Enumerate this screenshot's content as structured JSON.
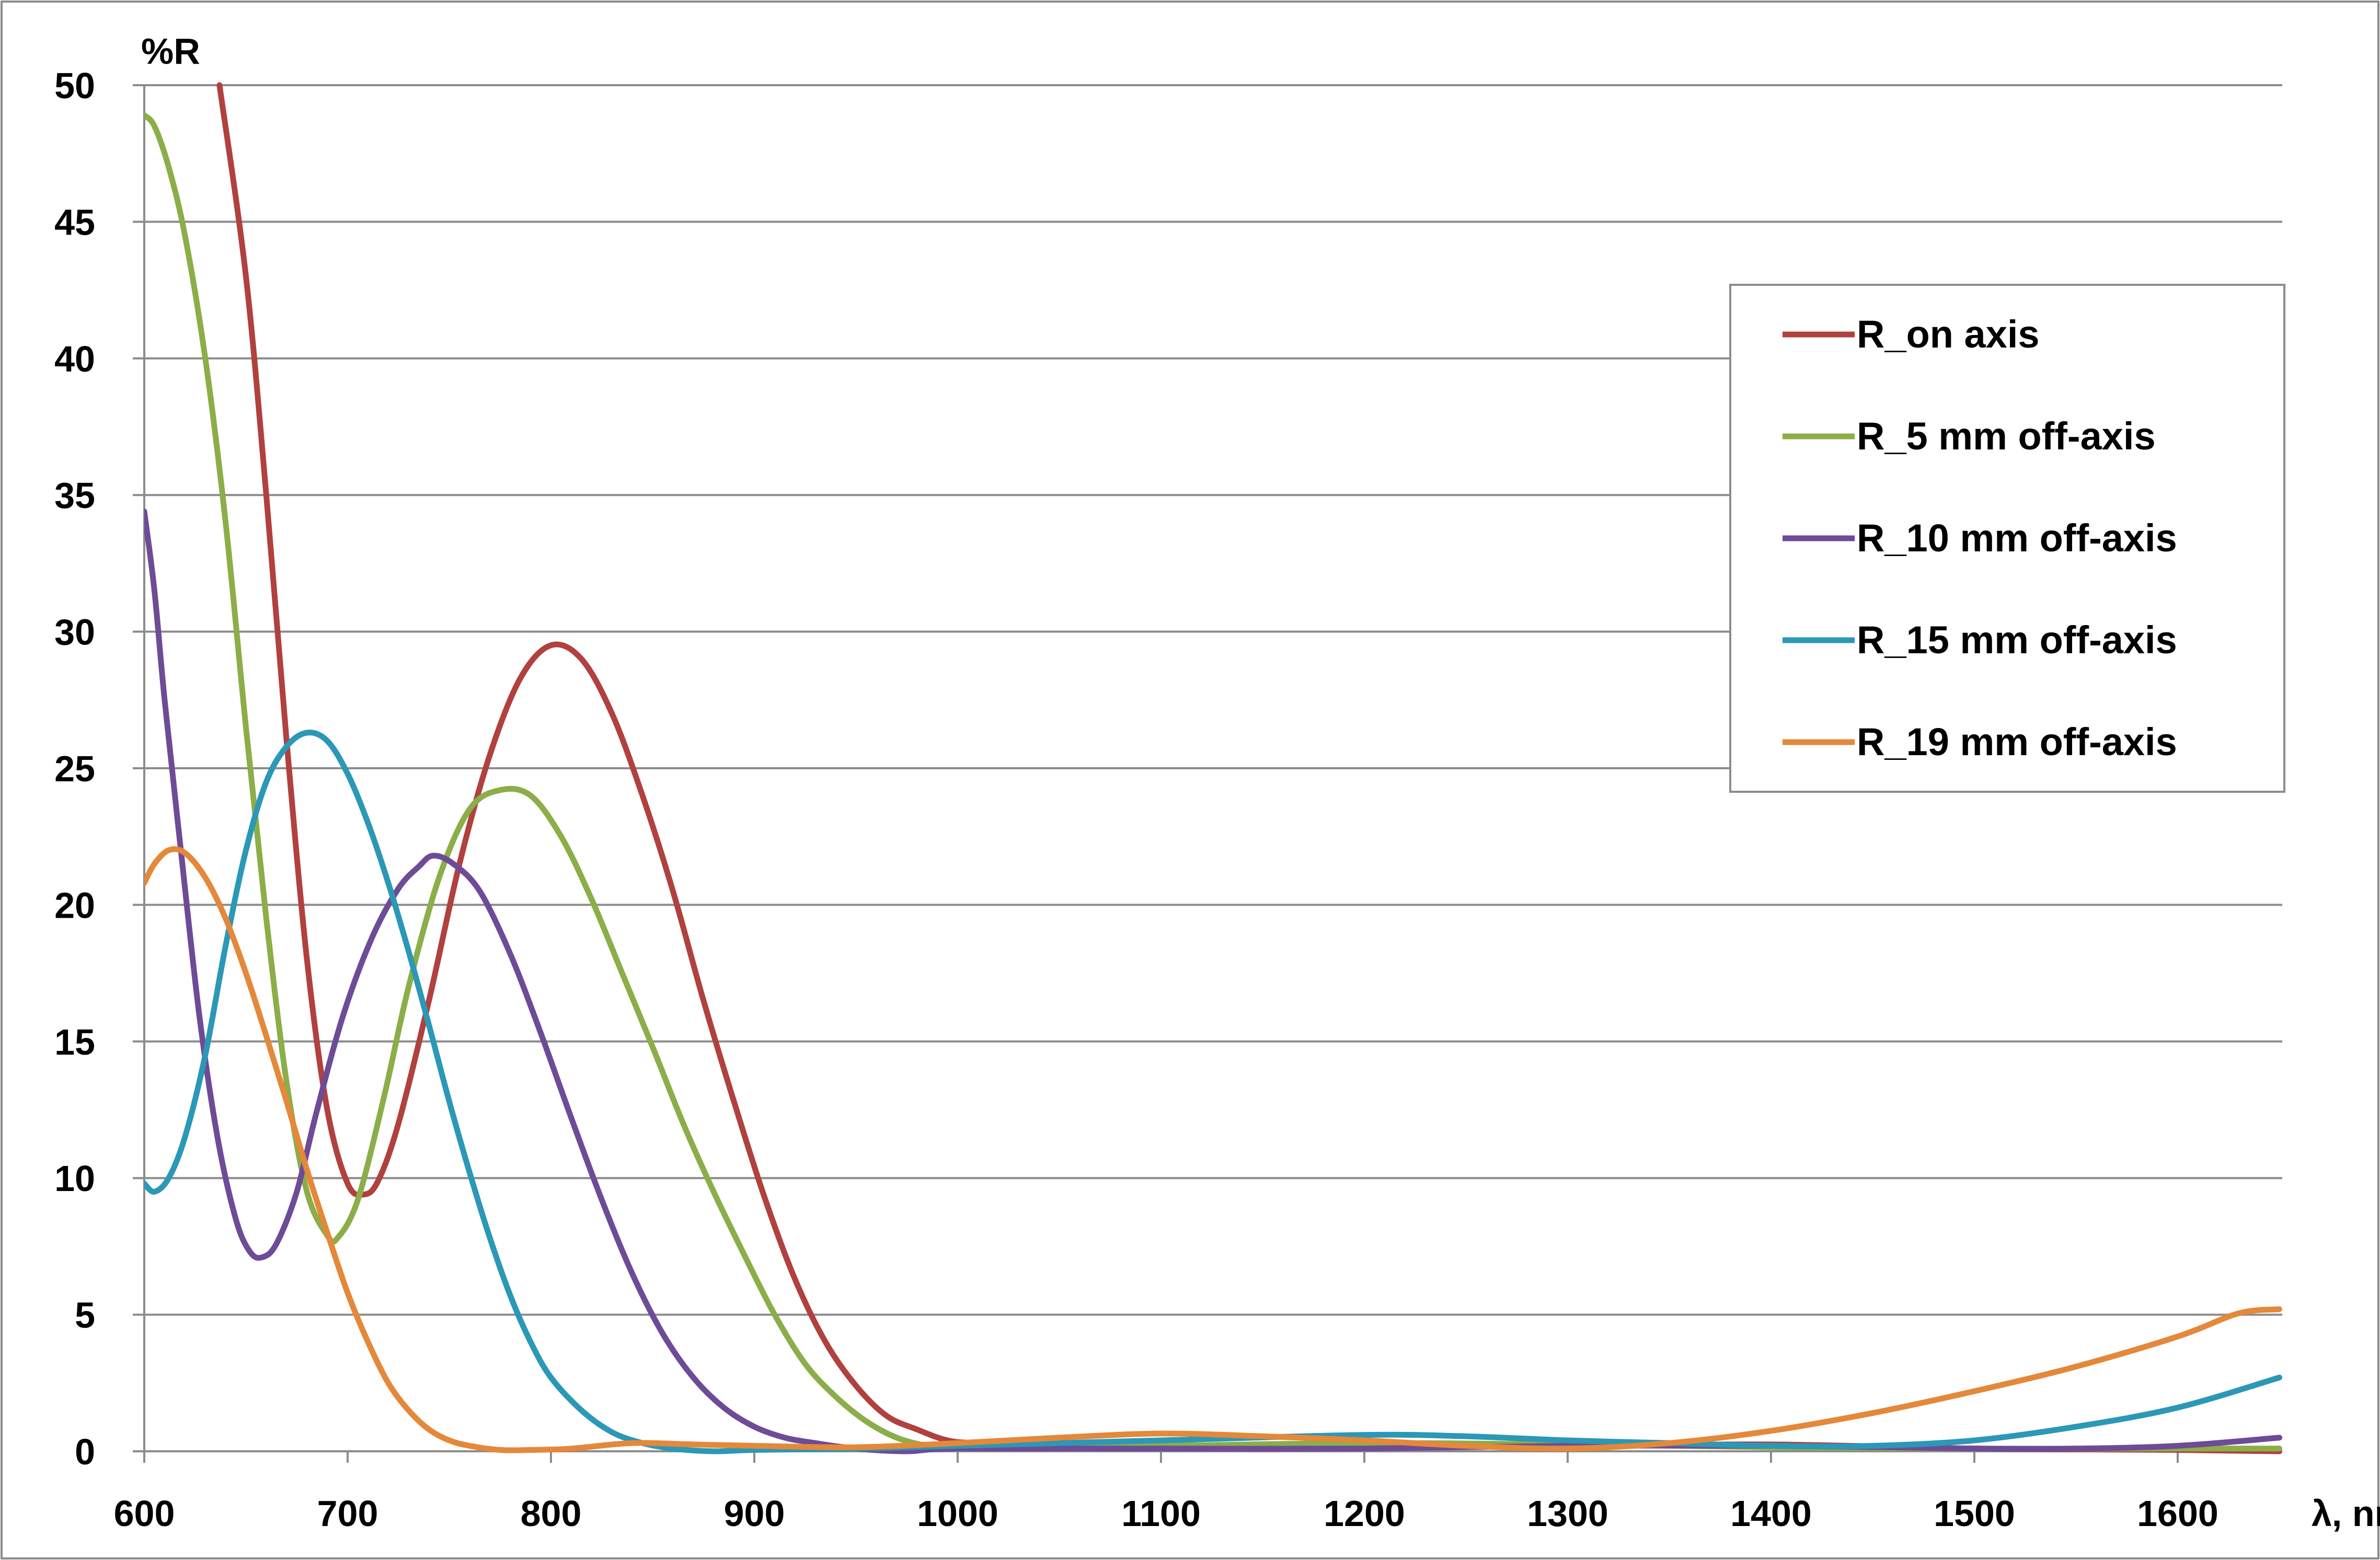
{
  "chart_data": {
    "type": "line",
    "title": "",
    "ylabel": "%R",
    "xlabel": "λ, nm",
    "xlim": [
      600,
      1650
    ],
    "ylim": [
      0,
      50
    ],
    "x_ticks": [
      600,
      700,
      800,
      900,
      1000,
      1100,
      1200,
      1300,
      1400,
      1500,
      1600
    ],
    "y_ticks": [
      0,
      5,
      10,
      15,
      20,
      25,
      30,
      35,
      40,
      45,
      50
    ],
    "grid": "horizontal",
    "legend_position": "right",
    "series": [
      {
        "name": "R_on axis",
        "color": "#B0413E",
        "points": [
          [
            637,
            50
          ],
          [
            650,
            43
          ],
          [
            660,
            35
          ],
          [
            670,
            26
          ],
          [
            680,
            18
          ],
          [
            690,
            12.5
          ],
          [
            700,
            9.8
          ],
          [
            708,
            9.4
          ],
          [
            715,
            9.9
          ],
          [
            725,
            12
          ],
          [
            740,
            16.5
          ],
          [
            755,
            21.5
          ],
          [
            770,
            25.5
          ],
          [
            785,
            28.3
          ],
          [
            800,
            29.5
          ],
          [
            815,
            29
          ],
          [
            830,
            27
          ],
          [
            845,
            24
          ],
          [
            860,
            20.5
          ],
          [
            875,
            16.5
          ],
          [
            890,
            12.8
          ],
          [
            905,
            9.3
          ],
          [
            920,
            6.3
          ],
          [
            935,
            4
          ],
          [
            950,
            2.4
          ],
          [
            965,
            1.3
          ],
          [
            980,
            0.8
          ],
          [
            995,
            0.4
          ],
          [
            1010,
            0.3
          ],
          [
            1050,
            0.2
          ],
          [
            1100,
            0.2
          ],
          [
            1200,
            0.2
          ],
          [
            1300,
            0.2
          ],
          [
            1400,
            0.25
          ],
          [
            1500,
            0.1
          ],
          [
            1600,
            0.05
          ],
          [
            1650,
            0
          ]
        ]
      },
      {
        "name": "R_5 mm off-axis",
        "color": "#8BAE49",
        "points": [
          [
            600,
            48.9
          ],
          [
            605,
            48.5
          ],
          [
            612,
            47
          ],
          [
            620,
            44.5
          ],
          [
            630,
            40
          ],
          [
            640,
            34
          ],
          [
            650,
            26.5
          ],
          [
            660,
            19.5
          ],
          [
            670,
            13.5
          ],
          [
            680,
            9.5
          ],
          [
            690,
            7.9
          ],
          [
            695,
            7.8
          ],
          [
            705,
            9.2
          ],
          [
            718,
            13
          ],
          [
            730,
            17
          ],
          [
            745,
            21
          ],
          [
            760,
            23.5
          ],
          [
            775,
            24.2
          ],
          [
            790,
            24
          ],
          [
            805,
            22.5
          ],
          [
            820,
            20.2
          ],
          [
            835,
            17.5
          ],
          [
            850,
            14.8
          ],
          [
            865,
            12
          ],
          [
            880,
            9.5
          ],
          [
            895,
            7.2
          ],
          [
            910,
            5
          ],
          [
            925,
            3.2
          ],
          [
            940,
            2
          ],
          [
            955,
            1.1
          ],
          [
            970,
            0.5
          ],
          [
            985,
            0.2
          ],
          [
            1000,
            0.1
          ],
          [
            1100,
            0.2
          ],
          [
            1200,
            0.3
          ],
          [
            1300,
            0.25
          ],
          [
            1400,
            0.15
          ],
          [
            1500,
            0.1
          ],
          [
            1600,
            0.1
          ],
          [
            1650,
            0.1
          ]
        ]
      },
      {
        "name": "R_10 mm off-axis",
        "color": "#6E4B96",
        "points": [
          [
            600,
            34.4
          ],
          [
            605,
            31.5
          ],
          [
            610,
            27.5
          ],
          [
            618,
            22
          ],
          [
            627,
            16
          ],
          [
            636,
            11.5
          ],
          [
            645,
            8.5
          ],
          [
            652,
            7.3
          ],
          [
            658,
            7.1
          ],
          [
            665,
            7.6
          ],
          [
            675,
            9.5
          ],
          [
            685,
            12.5
          ],
          [
            698,
            16
          ],
          [
            712,
            18.8
          ],
          [
            725,
            20.6
          ],
          [
            735,
            21.4
          ],
          [
            742,
            21.8
          ],
          [
            752,
            21.5
          ],
          [
            765,
            20.5
          ],
          [
            780,
            18.2
          ],
          [
            795,
            15.3
          ],
          [
            810,
            12.2
          ],
          [
            825,
            9.2
          ],
          [
            840,
            6.5
          ],
          [
            855,
            4.3
          ],
          [
            870,
            2.7
          ],
          [
            885,
            1.6
          ],
          [
            900,
            0.9
          ],
          [
            915,
            0.5
          ],
          [
            930,
            0.3
          ],
          [
            950,
            0.1
          ],
          [
            975,
            0
          ],
          [
            1000,
            0.1
          ],
          [
            1100,
            0.1
          ],
          [
            1200,
            0.1
          ],
          [
            1300,
            0.2
          ],
          [
            1400,
            0.2
          ],
          [
            1500,
            0.1
          ],
          [
            1550,
            0.1
          ],
          [
            1600,
            0.2
          ],
          [
            1650,
            0.5
          ]
        ]
      },
      {
        "name": "R_15 mm off-axis",
        "color": "#2B98B6",
        "points": [
          [
            600,
            9.8
          ],
          [
            605,
            9.5
          ],
          [
            612,
            10
          ],
          [
            620,
            11.5
          ],
          [
            630,
            14.5
          ],
          [
            640,
            18.5
          ],
          [
            650,
            22
          ],
          [
            660,
            24.5
          ],
          [
            670,
            25.8
          ],
          [
            680,
            26.3
          ],
          [
            690,
            26
          ],
          [
            700,
            24.8
          ],
          [
            710,
            23
          ],
          [
            720,
            20.8
          ],
          [
            730,
            18.3
          ],
          [
            740,
            15.6
          ],
          [
            750,
            12.8
          ],
          [
            760,
            10.2
          ],
          [
            770,
            7.8
          ],
          [
            780,
            5.7
          ],
          [
            790,
            4
          ],
          [
            800,
            2.7
          ],
          [
            815,
            1.5
          ],
          [
            830,
            0.7
          ],
          [
            845,
            0.3
          ],
          [
            860,
            0.1
          ],
          [
            880,
            0
          ],
          [
            900,
            0.05
          ],
          [
            950,
            0.1
          ],
          [
            1000,
            0.2
          ],
          [
            1100,
            0.4
          ],
          [
            1200,
            0.6
          ],
          [
            1250,
            0.55
          ],
          [
            1300,
            0.4
          ],
          [
            1350,
            0.3
          ],
          [
            1400,
            0.2
          ],
          [
            1450,
            0.2
          ],
          [
            1500,
            0.4
          ],
          [
            1550,
            0.9
          ],
          [
            1600,
            1.6
          ],
          [
            1650,
            2.7
          ]
        ]
      },
      {
        "name": "R_19 mm off-axis",
        "color": "#E4883A",
        "points": [
          [
            600,
            20.8
          ],
          [
            605,
            21.5
          ],
          [
            612,
            22
          ],
          [
            620,
            21.9
          ],
          [
            630,
            21
          ],
          [
            640,
            19.5
          ],
          [
            650,
            17.5
          ],
          [
            660,
            15.2
          ],
          [
            670,
            12.8
          ],
          [
            680,
            10.3
          ],
          [
            690,
            8
          ],
          [
            700,
            5.8
          ],
          [
            710,
            4
          ],
          [
            720,
            2.5
          ],
          [
            730,
            1.5
          ],
          [
            740,
            0.8
          ],
          [
            750,
            0.4
          ],
          [
            760,
            0.2
          ],
          [
            775,
            0.05
          ],
          [
            790,
            0.05
          ],
          [
            810,
            0.1
          ],
          [
            840,
            0.3
          ],
          [
            870,
            0.25
          ],
          [
            900,
            0.2
          ],
          [
            950,
            0.15
          ],
          [
            1000,
            0.3
          ],
          [
            1050,
            0.5
          ],
          [
            1100,
            0.65
          ],
          [
            1150,
            0.55
          ],
          [
            1200,
            0.4
          ],
          [
            1250,
            0.2
          ],
          [
            1300,
            0.1
          ],
          [
            1350,
            0.3
          ],
          [
            1400,
            0.75
          ],
          [
            1450,
            1.4
          ],
          [
            1500,
            2.2
          ],
          [
            1550,
            3.1
          ],
          [
            1600,
            4.2
          ],
          [
            1630,
            5.05
          ],
          [
            1650,
            5.2
          ]
        ]
      }
    ]
  }
}
